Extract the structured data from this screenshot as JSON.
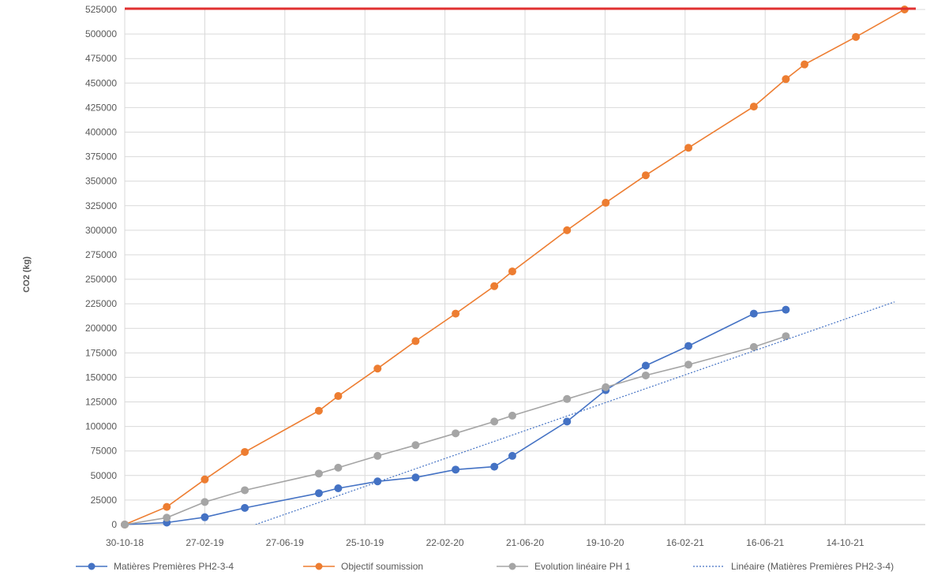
{
  "chart_data": {
    "type": "line",
    "title": "",
    "xlabel": "",
    "ylabel": "CO2 (kg)",
    "x_axis": {
      "type": "date",
      "ticks": [
        "2018-10-30",
        "2019-02-27",
        "2019-06-27",
        "2019-10-25",
        "2020-02-22",
        "2020-06-21",
        "2020-10-19",
        "2021-02-16",
        "2021-06-16",
        "2021-10-14"
      ],
      "tick_labels": [
        "30-10-18",
        "27-02-19",
        "27-06-19",
        "25-10-19",
        "22-02-20",
        "21-06-20",
        "19-10-20",
        "16-02-21",
        "16-06-21",
        "14-10-21"
      ],
      "xlim": [
        "2018-10-30",
        "2022-02-11"
      ]
    },
    "y_axis": {
      "ylim": [
        0,
        525000
      ],
      "ticks": [
        0,
        25000,
        50000,
        75000,
        100000,
        125000,
        150000,
        175000,
        200000,
        225000,
        250000,
        275000,
        300000,
        325000,
        350000,
        375000,
        400000,
        425000,
        450000,
        475000,
        500000,
        525000
      ],
      "tick_labels": [
        "0",
        "25000",
        "50000",
        "75000",
        "100000",
        "125000",
        "150000",
        "175000",
        "200000",
        "225000",
        "250000",
        "275000",
        "300000",
        "325000",
        "350000",
        "375000",
        "400000",
        "425000",
        "450000",
        "475000",
        "500000",
        "525000"
      ]
    },
    "grid": true,
    "legend": "bottom",
    "reference_line": {
      "y": 525000,
      "color": "#e03030"
    },
    "series": [
      {
        "name": "Matières Premières PH2-3-4",
        "color": "#4472c4",
        "style": "line-markers",
        "points": [
          [
            "2018-10-30",
            0
          ],
          [
            "2019-01-01",
            2000
          ],
          [
            "2019-02-27",
            7500
          ],
          [
            "2019-04-28",
            17000
          ],
          [
            "2019-08-17",
            32000
          ],
          [
            "2019-09-15",
            37000
          ],
          [
            "2019-11-13",
            44000
          ],
          [
            "2020-01-09",
            48000
          ],
          [
            "2020-03-09",
            56000
          ],
          [
            "2020-05-06",
            59000
          ],
          [
            "2020-06-02",
            70000
          ],
          [
            "2020-08-23",
            105000
          ],
          [
            "2020-10-20",
            137000
          ],
          [
            "2020-12-19",
            162000
          ],
          [
            "2021-02-21",
            182000
          ],
          [
            "2021-05-30",
            215000
          ],
          [
            "2021-07-17",
            219000
          ]
        ]
      },
      {
        "name": "Objectif soumission",
        "color": "#ed7d31",
        "style": "line-markers",
        "points": [
          [
            "2018-10-30",
            0
          ],
          [
            "2019-01-01",
            18000
          ],
          [
            "2019-02-27",
            46000
          ],
          [
            "2019-04-28",
            74000
          ],
          [
            "2019-08-17",
            116000
          ],
          [
            "2019-09-15",
            131000
          ],
          [
            "2019-11-13",
            159000
          ],
          [
            "2020-01-09",
            187000
          ],
          [
            "2020-03-09",
            215000
          ],
          [
            "2020-05-06",
            243000
          ],
          [
            "2020-06-02",
            258000
          ],
          [
            "2020-08-23",
            300000
          ],
          [
            "2020-10-20",
            328000
          ],
          [
            "2020-12-19",
            356000
          ],
          [
            "2021-02-21",
            384000
          ],
          [
            "2021-05-30",
            426000
          ],
          [
            "2021-07-17",
            454000
          ],
          [
            "2021-08-14",
            469000
          ],
          [
            "2021-10-30",
            497000
          ],
          [
            "2022-01-11",
            525000
          ]
        ]
      },
      {
        "name": "Evolution linéaire PH 1",
        "color": "#a5a5a5",
        "style": "line-markers",
        "points": [
          [
            "2018-10-30",
            0
          ],
          [
            "2019-01-01",
            7000
          ],
          [
            "2019-02-27",
            23000
          ],
          [
            "2019-04-28",
            35000
          ],
          [
            "2019-08-17",
            52000
          ],
          [
            "2019-09-15",
            58000
          ],
          [
            "2019-11-13",
            70000
          ],
          [
            "2020-01-09",
            81000
          ],
          [
            "2020-03-09",
            93000
          ],
          [
            "2020-05-06",
            105000
          ],
          [
            "2020-06-02",
            111000
          ],
          [
            "2020-08-23",
            128000
          ],
          [
            "2020-10-20",
            140000
          ],
          [
            "2020-12-19",
            152000
          ],
          [
            "2021-02-21",
            163000
          ],
          [
            "2021-05-30",
            181000
          ],
          [
            "2021-07-17",
            192000
          ]
        ]
      },
      {
        "name": "Linéaire (Matières Premières PH2-3-4)",
        "color": "#4472c4",
        "style": "dotted-trendline",
        "points": [
          [
            "2019-02-27",
            -18000
          ],
          [
            "2021-12-27",
            227000
          ]
        ]
      }
    ]
  }
}
